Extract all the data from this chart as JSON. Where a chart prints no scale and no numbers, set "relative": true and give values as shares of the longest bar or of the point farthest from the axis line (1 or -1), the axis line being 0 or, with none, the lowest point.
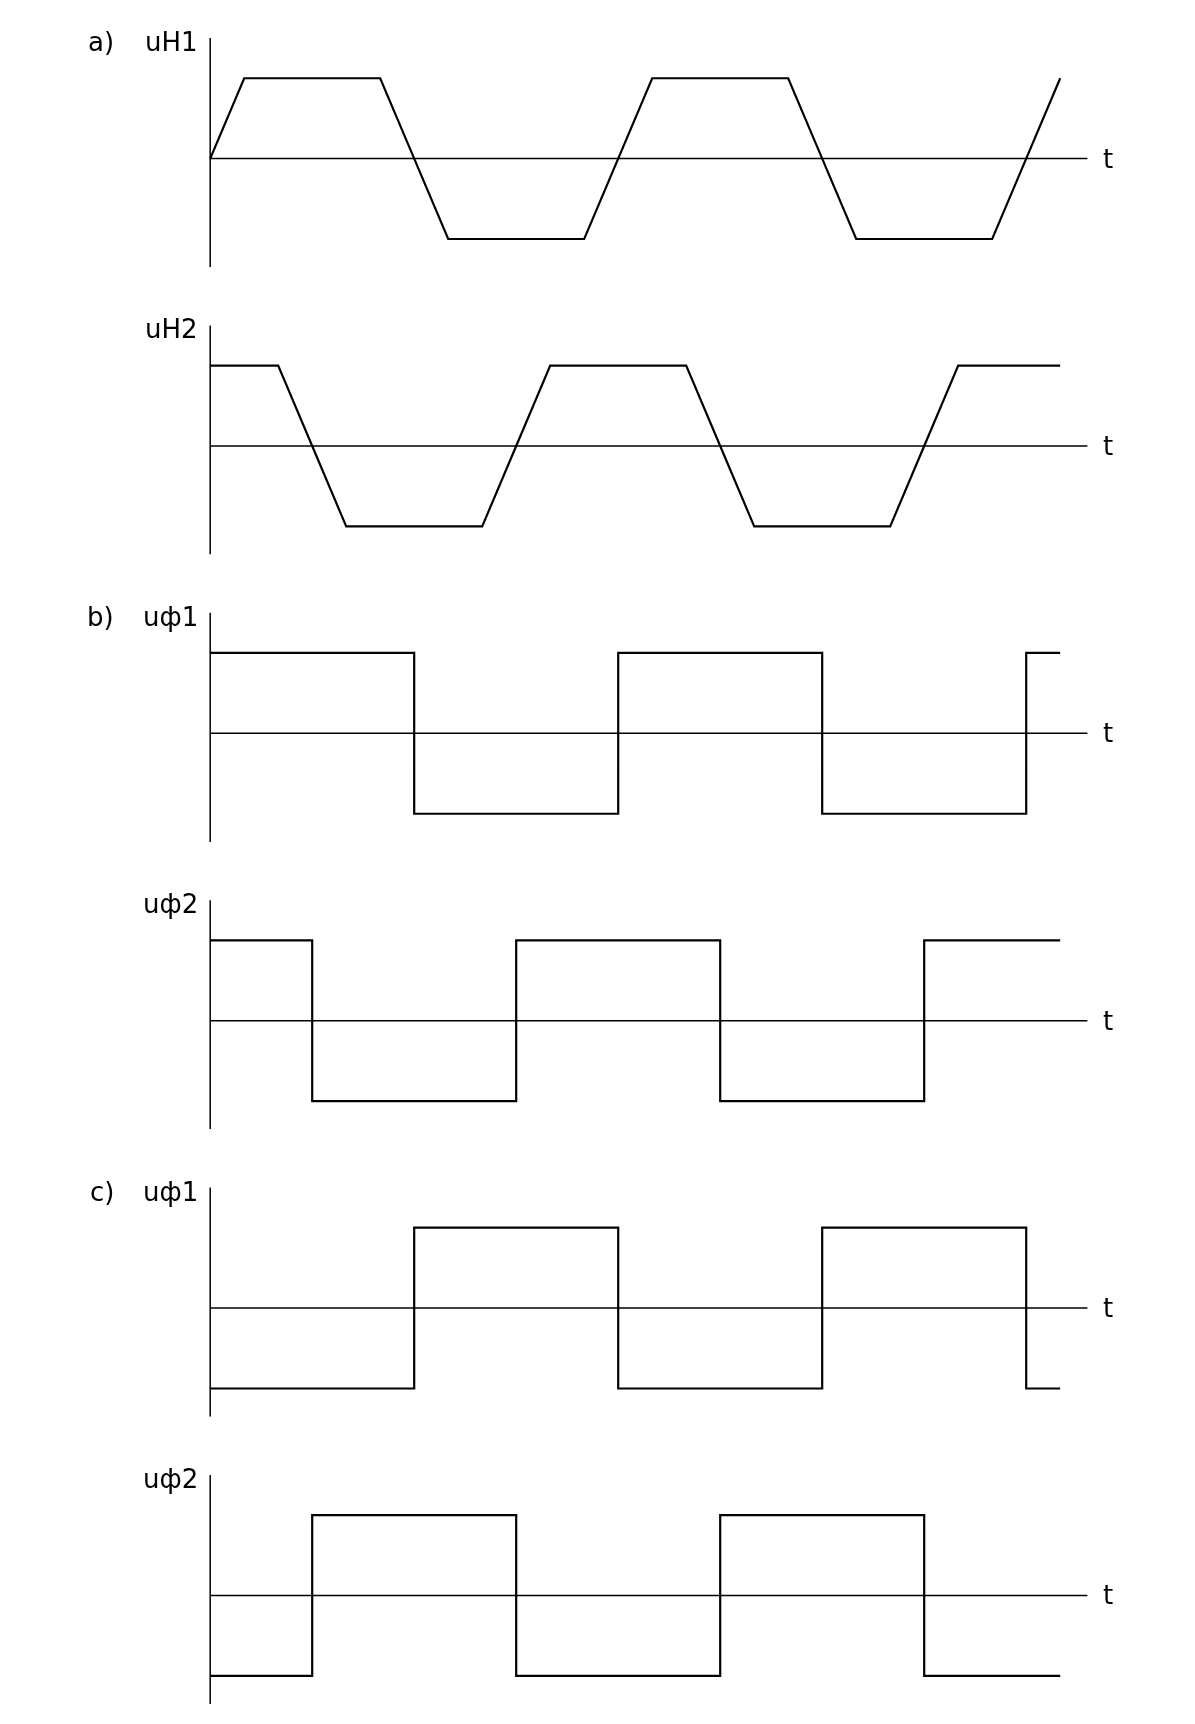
{
  "chart_data": [
    {
      "type": "line",
      "title": "a)",
      "ylabel": "uH1",
      "xlabel": "t",
      "relative": true,
      "color": "#000000",
      "categories": [
        null,
        null,
        null,
        null,
        null,
        null,
        null,
        null,
        null,
        null,
        null,
        null,
        null,
        null,
        null,
        null,
        null,
        null,
        null,
        null,
        null,
        null,
        null,
        null,
        null,
        null
      ],
      "values": [
        0,
        1,
        1,
        1,
        1,
        1,
        0,
        -1,
        -1,
        -1,
        -1,
        -1,
        0,
        1,
        1,
        1,
        1,
        1,
        0,
        -1,
        -1,
        -1,
        -1,
        -1,
        0,
        1
      ]
    },
    {
      "type": "line",
      "ylabel": "uH2",
      "xlabel": "t",
      "relative": true,
      "color": "#000000",
      "categories": [
        null,
        null,
        null,
        null,
        null,
        null,
        null,
        null,
        null,
        null,
        null,
        null,
        null,
        null,
        null,
        null,
        null,
        null,
        null,
        null,
        null,
        null,
        null,
        null,
        null,
        null
      ],
      "values": [
        1,
        1,
        1,
        0,
        -1,
        -1,
        -1,
        -1,
        -1,
        0,
        1,
        1,
        1,
        1,
        1,
        0,
        -1,
        -1,
        -1,
        -1,
        -1,
        0,
        1,
        1,
        1,
        1
      ]
    },
    {
      "type": "step",
      "title": "b)",
      "ylabel": "uф1",
      "xlabel": "t",
      "relative": true,
      "color": "#000000",
      "categories": [
        null,
        null,
        null,
        null,
        null,
        null,
        null,
        null,
        null,
        null,
        null,
        null,
        null,
        null,
        null,
        null,
        null,
        null,
        null,
        null,
        null,
        null,
        null,
        null,
        null,
        null
      ],
      "values": [
        1,
        1,
        1,
        1,
        1,
        1,
        -1,
        -1,
        -1,
        -1,
        -1,
        -1,
        1,
        1,
        1,
        1,
        1,
        1,
        -1,
        -1,
        -1,
        -1,
        -1,
        -1,
        1,
        1
      ]
    },
    {
      "type": "step",
      "ylabel": "uф2",
      "xlabel": "t",
      "relative": true,
      "color": "#000000",
      "categories": [
        null,
        null,
        null,
        null,
        null,
        null,
        null,
        null,
        null,
        null,
        null,
        null,
        null,
        null,
        null,
        null,
        null,
        null,
        null,
        null,
        null,
        null,
        null,
        null,
        null,
        null
      ],
      "values": [
        1,
        1,
        1,
        -1,
        -1,
        -1,
        -1,
        -1,
        -1,
        1,
        1,
        1,
        1,
        1,
        1,
        -1,
        -1,
        -1,
        -1,
        -1,
        -1,
        1,
        1,
        1,
        1,
        1
      ]
    },
    {
      "type": "step",
      "title": "c)",
      "ylabel": "uф1",
      "xlabel": "t",
      "relative": true,
      "color": "#000000",
      "categories": [
        null,
        null,
        null,
        null,
        null,
        null,
        null,
        null,
        null,
        null,
        null,
        null,
        null,
        null,
        null,
        null,
        null,
        null,
        null,
        null,
        null,
        null,
        null,
        null,
        null,
        null
      ],
      "values": [
        -1,
        -1,
        -1,
        -1,
        -1,
        -1,
        1,
        1,
        1,
        1,
        1,
        1,
        -1,
        -1,
        -1,
        -1,
        -1,
        -1,
        1,
        1,
        1,
        1,
        1,
        1,
        -1,
        -1
      ]
    },
    {
      "type": "step",
      "ylabel": "uф2",
      "xlabel": "t",
      "relative": true,
      "color": "#000000",
      "categories": [
        null,
        null,
        null,
        null,
        null,
        null,
        null,
        null,
        null,
        null,
        null,
        null,
        null,
        null,
        null,
        null,
        null,
        null,
        null,
        null,
        null,
        null,
        null,
        null,
        null,
        null
      ],
      "values": [
        -1,
        -1,
        -1,
        1,
        1,
        1,
        1,
        1,
        1,
        -1,
        -1,
        -1,
        -1,
        -1,
        -1,
        1,
        1,
        1,
        1,
        1,
        1,
        -1,
        -1,
        -1,
        -1,
        -1
      ]
    }
  ]
}
